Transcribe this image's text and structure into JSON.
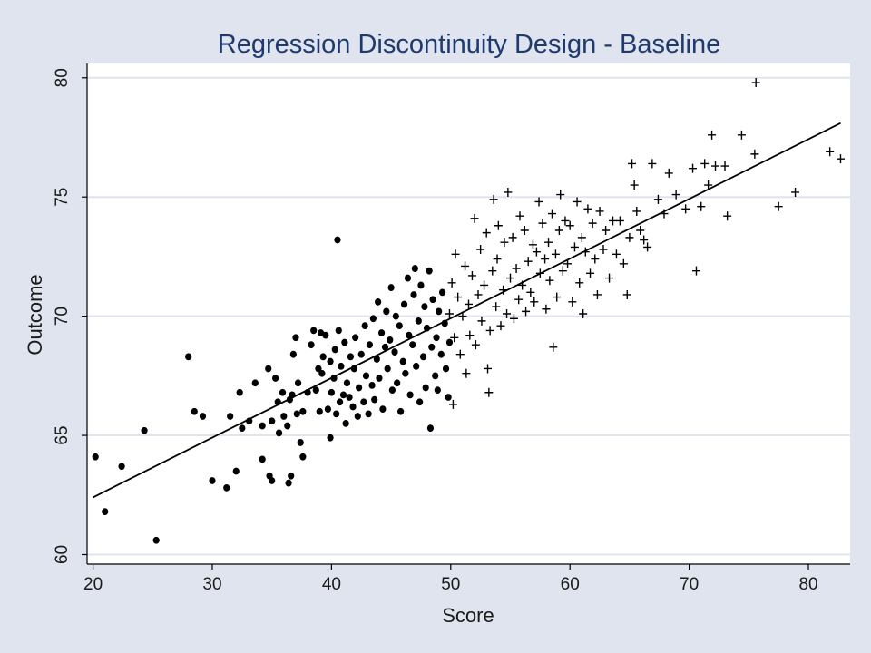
{
  "chart_data": {
    "type": "scatter",
    "title": "Regression Discontinuity Design - Baseline",
    "xlabel": "Score",
    "ylabel": "Outcome",
    "xlim": [
      19.5,
      83.5
    ],
    "ylim": [
      59.6,
      80.6
    ],
    "x_ticks": [
      20,
      30,
      40,
      50,
      60,
      70,
      80
    ],
    "y_ticks": [
      60,
      65,
      70,
      75,
      80
    ],
    "grid": "horizontal",
    "legend": "none",
    "colors": {
      "background": "#dfe4ee",
      "plot_area": "#ffffff",
      "grid": "#dfe4ee",
      "title": "#1f3a6e",
      "markers": "#000000",
      "fit_line": "#000000"
    },
    "fit_line": {
      "x": [
        20,
        82.7
      ],
      "y": [
        62.4,
        78.1
      ]
    },
    "series": [
      {
        "marker": "circle",
        "points": [
          [
            20.2,
            64.1
          ],
          [
            21.0,
            61.8
          ],
          [
            22.4,
            63.7
          ],
          [
            24.3,
            65.2
          ],
          [
            25.3,
            60.6
          ],
          [
            28.0,
            68.3
          ],
          [
            28.5,
            66.0
          ],
          [
            29.2,
            65.8
          ],
          [
            30.0,
            63.1
          ],
          [
            31.2,
            62.8
          ],
          [
            31.5,
            65.8
          ],
          [
            32.0,
            63.5
          ],
          [
            32.3,
            66.8
          ],
          [
            32.5,
            65.3
          ],
          [
            33.1,
            65.6
          ],
          [
            33.6,
            67.2
          ],
          [
            34.2,
            65.4
          ],
          [
            34.2,
            64.0
          ],
          [
            34.7,
            67.8
          ],
          [
            34.8,
            63.3
          ],
          [
            35.0,
            63.1
          ],
          [
            35.0,
            65.6
          ],
          [
            35.3,
            67.4
          ],
          [
            35.5,
            66.4
          ],
          [
            35.6,
            65.1
          ],
          [
            35.9,
            66.8
          ],
          [
            36.0,
            65.8
          ],
          [
            36.3,
            65.4
          ],
          [
            36.4,
            63.0
          ],
          [
            36.5,
            66.5
          ],
          [
            36.6,
            63.3
          ],
          [
            36.7,
            66.7
          ],
          [
            36.8,
            68.4
          ],
          [
            37.0,
            69.1
          ],
          [
            37.1,
            65.9
          ],
          [
            37.2,
            67.2
          ],
          [
            37.4,
            64.7
          ],
          [
            37.6,
            64.1
          ],
          [
            37.6,
            66.0
          ],
          [
            38.0,
            66.8
          ],
          [
            38.3,
            68.8
          ],
          [
            38.5,
            69.4
          ],
          [
            38.7,
            66.9
          ],
          [
            38.9,
            67.8
          ],
          [
            39.0,
            66.0
          ],
          [
            39.1,
            69.3
          ],
          [
            39.2,
            67.6
          ],
          [
            39.3,
            68.3
          ],
          [
            39.5,
            69.2
          ],
          [
            39.7,
            66.1
          ],
          [
            39.9,
            64.9
          ],
          [
            39.9,
            68.1
          ],
          [
            40.0,
            66.8
          ],
          [
            40.2,
            67.4
          ],
          [
            40.3,
            68.6
          ],
          [
            40.4,
            65.9
          ],
          [
            40.5,
            73.2
          ],
          [
            40.6,
            69.4
          ],
          [
            40.7,
            66.4
          ],
          [
            40.8,
            67.9
          ],
          [
            41.0,
            66.7
          ],
          [
            41.1,
            68.9
          ],
          [
            41.2,
            65.5
          ],
          [
            41.3,
            67.2
          ],
          [
            41.5,
            66.6
          ],
          [
            41.6,
            68.3
          ],
          [
            41.8,
            66.2
          ],
          [
            41.9,
            67.8
          ],
          [
            42.0,
            69.1
          ],
          [
            42.2,
            65.8
          ],
          [
            42.3,
            67.0
          ],
          [
            42.5,
            68.4
          ],
          [
            42.7,
            66.4
          ],
          [
            42.8,
            69.6
          ],
          [
            42.9,
            67.5
          ],
          [
            43.1,
            65.9
          ],
          [
            43.2,
            68.8
          ],
          [
            43.4,
            67.1
          ],
          [
            43.5,
            69.9
          ],
          [
            43.6,
            66.5
          ],
          [
            43.8,
            68.2
          ],
          [
            43.9,
            70.6
          ],
          [
            44.0,
            67.4
          ],
          [
            44.2,
            69.3
          ],
          [
            44.3,
            66.1
          ],
          [
            44.5,
            68.7
          ],
          [
            44.6,
            70.2
          ],
          [
            44.7,
            67.8
          ],
          [
            44.9,
            69.0
          ],
          [
            45.0,
            71.2
          ],
          [
            45.1,
            66.9
          ],
          [
            45.3,
            68.5
          ],
          [
            45.4,
            70.0
          ],
          [
            45.5,
            67.2
          ],
          [
            45.7,
            69.6
          ],
          [
            45.8,
            66.0
          ],
          [
            46.0,
            68.1
          ],
          [
            46.1,
            70.5
          ],
          [
            46.2,
            67.6
          ],
          [
            46.4,
            71.6
          ],
          [
            46.5,
            69.2
          ],
          [
            46.6,
            66.7
          ],
          [
            46.8,
            68.8
          ],
          [
            46.9,
            70.9
          ],
          [
            47.0,
            72.0
          ],
          [
            47.1,
            67.9
          ],
          [
            47.3,
            69.8
          ],
          [
            47.4,
            66.4
          ],
          [
            47.5,
            71.3
          ],
          [
            47.7,
            68.3
          ],
          [
            47.8,
            70.4
          ],
          [
            47.9,
            67.0
          ],
          [
            48.0,
            69.5
          ],
          [
            48.2,
            71.9
          ],
          [
            48.3,
            65.3
          ],
          [
            48.4,
            68.7
          ],
          [
            48.5,
            70.7
          ],
          [
            48.7,
            67.5
          ],
          [
            48.8,
            69.1
          ],
          [
            48.9,
            66.9
          ],
          [
            49.0,
            70.2
          ],
          [
            49.2,
            68.4
          ],
          [
            49.3,
            71.0
          ],
          [
            49.5,
            69.7
          ],
          [
            49.6,
            67.8
          ],
          [
            49.8,
            66.6
          ],
          [
            49.9,
            68.9
          ]
        ]
      },
      {
        "marker": "plus",
        "points": [
          [
            49.9,
            70.1
          ],
          [
            50.1,
            71.4
          ],
          [
            50.2,
            66.3
          ],
          [
            50.3,
            69.1
          ],
          [
            50.4,
            72.6
          ],
          [
            50.6,
            70.8
          ],
          [
            50.8,
            68.4
          ],
          [
            51.0,
            70.0
          ],
          [
            51.2,
            72.1
          ],
          [
            51.3,
            67.6
          ],
          [
            51.5,
            70.5
          ],
          [
            51.6,
            69.2
          ],
          [
            51.8,
            71.7
          ],
          [
            52.0,
            74.1
          ],
          [
            52.1,
            68.8
          ],
          [
            52.3,
            70.9
          ],
          [
            52.5,
            72.8
          ],
          [
            52.6,
            69.8
          ],
          [
            52.8,
            71.3
          ],
          [
            53.0,
            73.5
          ],
          [
            53.1,
            67.8
          ],
          [
            53.2,
            66.8
          ],
          [
            53.3,
            69.4
          ],
          [
            53.5,
            71.9
          ],
          [
            53.6,
            74.9
          ],
          [
            53.8,
            70.4
          ],
          [
            53.9,
            72.4
          ],
          [
            54.0,
            73.8
          ],
          [
            54.2,
            69.6
          ],
          [
            54.4,
            71.1
          ],
          [
            54.5,
            73.1
          ],
          [
            54.7,
            70.1
          ],
          [
            54.8,
            75.2
          ],
          [
            55.0,
            71.6
          ],
          [
            55.2,
            73.3
          ],
          [
            55.3,
            69.9
          ],
          [
            55.5,
            72.0
          ],
          [
            55.7,
            70.7
          ],
          [
            55.8,
            74.2
          ],
          [
            56.0,
            71.3
          ],
          [
            56.2,
            73.6
          ],
          [
            56.3,
            70.2
          ],
          [
            56.5,
            72.3
          ],
          [
            56.7,
            71.0
          ],
          [
            56.9,
            73.0
          ],
          [
            57.0,
            70.6
          ],
          [
            57.2,
            72.7
          ],
          [
            57.4,
            74.8
          ],
          [
            57.5,
            71.8
          ],
          [
            57.7,
            73.9
          ],
          [
            57.9,
            72.4
          ],
          [
            58.0,
            70.3
          ],
          [
            58.2,
            73.1
          ],
          [
            58.3,
            71.5
          ],
          [
            58.5,
            74.3
          ],
          [
            58.6,
            68.7
          ],
          [
            58.8,
            72.6
          ],
          [
            58.9,
            70.8
          ],
          [
            59.1,
            73.6
          ],
          [
            59.2,
            75.1
          ],
          [
            59.4,
            71.9
          ],
          [
            59.6,
            74.0
          ],
          [
            59.8,
            72.2
          ],
          [
            60.0,
            73.8
          ],
          [
            60.2,
            70.6
          ],
          [
            60.4,
            72.9
          ],
          [
            60.6,
            74.8
          ],
          [
            60.8,
            71.4
          ],
          [
            61.0,
            73.3
          ],
          [
            61.1,
            70.1
          ],
          [
            61.3,
            72.7
          ],
          [
            61.5,
            74.5
          ],
          [
            61.7,
            71.8
          ],
          [
            61.9,
            73.9
          ],
          [
            62.1,
            72.4
          ],
          [
            62.3,
            70.9
          ],
          [
            62.5,
            74.4
          ],
          [
            62.8,
            72.8
          ],
          [
            63.0,
            73.6
          ],
          [
            63.3,
            71.6
          ],
          [
            63.6,
            74.0
          ],
          [
            63.9,
            72.6
          ],
          [
            64.2,
            74.0
          ],
          [
            64.5,
            72.2
          ],
          [
            64.8,
            70.9
          ],
          [
            65.0,
            73.3
          ],
          [
            65.2,
            76.4
          ],
          [
            65.4,
            75.5
          ],
          [
            65.6,
            74.4
          ],
          [
            65.9,
            73.6
          ],
          [
            66.2,
            73.2
          ],
          [
            66.5,
            72.9
          ],
          [
            66.9,
            76.4
          ],
          [
            67.4,
            74.9
          ],
          [
            67.9,
            74.3
          ],
          [
            68.3,
            76.0
          ],
          [
            68.9,
            75.1
          ],
          [
            69.7,
            74.5
          ],
          [
            70.3,
            76.2
          ],
          [
            70.6,
            71.9
          ],
          [
            71.0,
            74.6
          ],
          [
            71.3,
            76.4
          ],
          [
            71.6,
            75.5
          ],
          [
            71.9,
            77.6
          ],
          [
            72.2,
            76.3
          ],
          [
            73.0,
            76.3
          ],
          [
            73.2,
            74.2
          ],
          [
            74.4,
            77.6
          ],
          [
            75.5,
            76.8
          ],
          [
            75.6,
            79.8
          ],
          [
            77.5,
            74.6
          ],
          [
            78.9,
            75.2
          ],
          [
            81.8,
            76.9
          ],
          [
            82.7,
            76.6
          ]
        ]
      }
    ]
  }
}
